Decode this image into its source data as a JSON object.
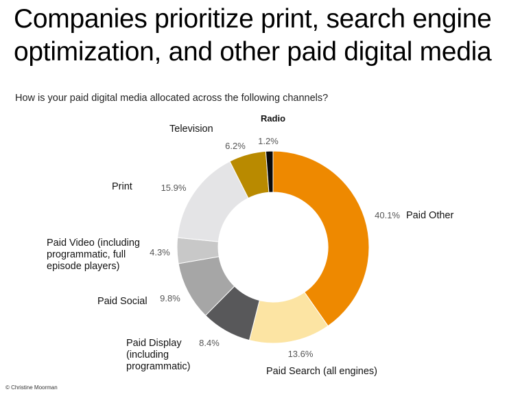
{
  "title": "Companies prioritize print, search engine optimization, and other paid digital media",
  "subtitle": "How is your paid digital media allocated across the following channels?",
  "credit": "© Christine Moorman",
  "chart_data": {
    "type": "pie",
    "variant": "donut",
    "title": "Companies prioritize print, search engine optimization, and other paid digital media",
    "subtitle": "How is your paid digital media allocated across the following channels?",
    "slices": [
      {
        "name": "Paid Other",
        "lines": [
          "Paid Other"
        ],
        "value": 40.1,
        "label": "40.1%",
        "color": "#EE8900"
      },
      {
        "name": "Paid Search (all engines)",
        "lines": [
          "Paid Search (all engines)"
        ],
        "value": 13.6,
        "label": "13.6%",
        "color": "#FCE4A3"
      },
      {
        "name": "Paid Display (including programmatic)",
        "lines": [
          "Paid Display",
          "(including",
          "programmatic)"
        ],
        "value": 8.4,
        "label": "8.4%",
        "color": "#58585A"
      },
      {
        "name": "Paid Social",
        "lines": [
          "Paid Social"
        ],
        "value": 9.8,
        "label": "9.8%",
        "color": "#A6A6A6"
      },
      {
        "name": "Paid Video (including programmatic, full episode players)",
        "lines": [
          "Paid Video (including",
          "programmatic, full",
          "episode players)"
        ],
        "value": 4.3,
        "label": "4.3%",
        "color": "#C8C8C8"
      },
      {
        "name": "Print",
        "lines": [
          "Print"
        ],
        "value": 15.9,
        "label": "15.9%",
        "color": "#E4E4E6"
      },
      {
        "name": "Television",
        "lines": [
          "Television"
        ],
        "value": 6.2,
        "label": "6.2%",
        "color": "#B98A00"
      },
      {
        "name": "Radio",
        "lines": [
          "Radio"
        ],
        "value": 1.2,
        "label": "1.2%",
        "color": "#0A0A0A"
      }
    ],
    "legend": "none"
  }
}
